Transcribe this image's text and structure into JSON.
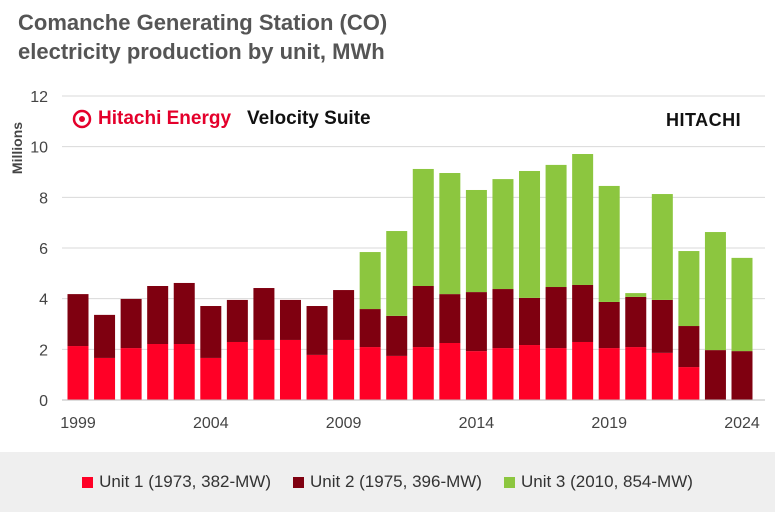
{
  "title_line1": "Comanche Generating Station (CO)",
  "title_line2": "electricity production by unit, MWh",
  "watermark": {
    "brand": "Hitachi Energy",
    "product": "Velocity Suite",
    "corner": "HITACHI"
  },
  "chart_data": {
    "type": "bar",
    "stacked": true,
    "title": "Comanche Generating Station (CO) electricity production by unit, MWh",
    "xlabel": "",
    "ylabel": "Millions",
    "ylim": [
      0,
      12
    ],
    "yticks": [
      0,
      2,
      4,
      6,
      8,
      10,
      12
    ],
    "xtick_labels": [
      "1999",
      "2004",
      "2009",
      "2014",
      "2019",
      "2024"
    ],
    "grid": true,
    "legend_position": "bottom",
    "categories": [
      "1999",
      "2000",
      "2001",
      "2002",
      "2003",
      "2004",
      "2005",
      "2006",
      "2007",
      "2008",
      "2009",
      "2010",
      "2011",
      "2012",
      "2013",
      "2014",
      "2015",
      "2016",
      "2017",
      "2018",
      "2019",
      "2020",
      "2021",
      "2022",
      "2023",
      "2024"
    ],
    "series": [
      {
        "name": "Unit 1 (1973, 382-MW)",
        "color": "#ff0026",
        "values": [
          2.13,
          1.66,
          2.05,
          2.21,
          2.21,
          1.66,
          2.29,
          2.37,
          2.37,
          1.78,
          2.37,
          2.09,
          1.74,
          2.09,
          2.25,
          1.93,
          2.05,
          2.17,
          2.05,
          2.29,
          2.05,
          2.09,
          1.86,
          1.3,
          0,
          0
        ]
      },
      {
        "name": "Unit 2 (1975, 396-MW)",
        "color": "#7f0010",
        "values": [
          2.05,
          1.7,
          1.94,
          2.29,
          2.41,
          2.05,
          1.66,
          2.05,
          1.58,
          1.93,
          1.97,
          1.5,
          1.58,
          2.41,
          1.93,
          2.33,
          2.33,
          1.86,
          2.41,
          2.25,
          1.82,
          1.98,
          2.09,
          1.62,
          1.97,
          1.93
        ]
      },
      {
        "name": "Unit 3 (2010, 854-MW)",
        "color": "#8cc63f",
        "values": [
          0,
          0,
          0,
          0,
          0,
          0,
          0,
          0,
          0,
          0,
          0,
          2.25,
          3.35,
          4.62,
          4.78,
          4.03,
          4.34,
          5.01,
          4.82,
          5.17,
          4.58,
          0.15,
          4.18,
          2.96,
          4.66,
          3.68
        ]
      }
    ]
  }
}
